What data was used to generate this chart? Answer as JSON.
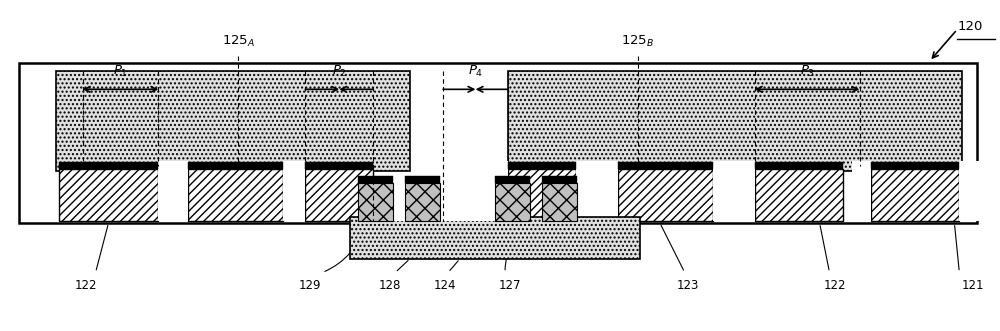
{
  "fig_width": 10.0,
  "fig_height": 3.31,
  "dpi": 100,
  "bg_color": "#ffffff",
  "black": "#000000",
  "white": "#ffffff",
  "gray_light": "#d8d8d8",
  "labels": {
    "120": "120",
    "121": "121",
    "122": "122",
    "123": "123",
    "124": "124",
    "127": "127",
    "128": "128",
    "129": "129",
    "125A": "125",
    "125B": "125",
    "P1": "P",
    "P2": "P",
    "P3": "P",
    "P4": "P"
  }
}
